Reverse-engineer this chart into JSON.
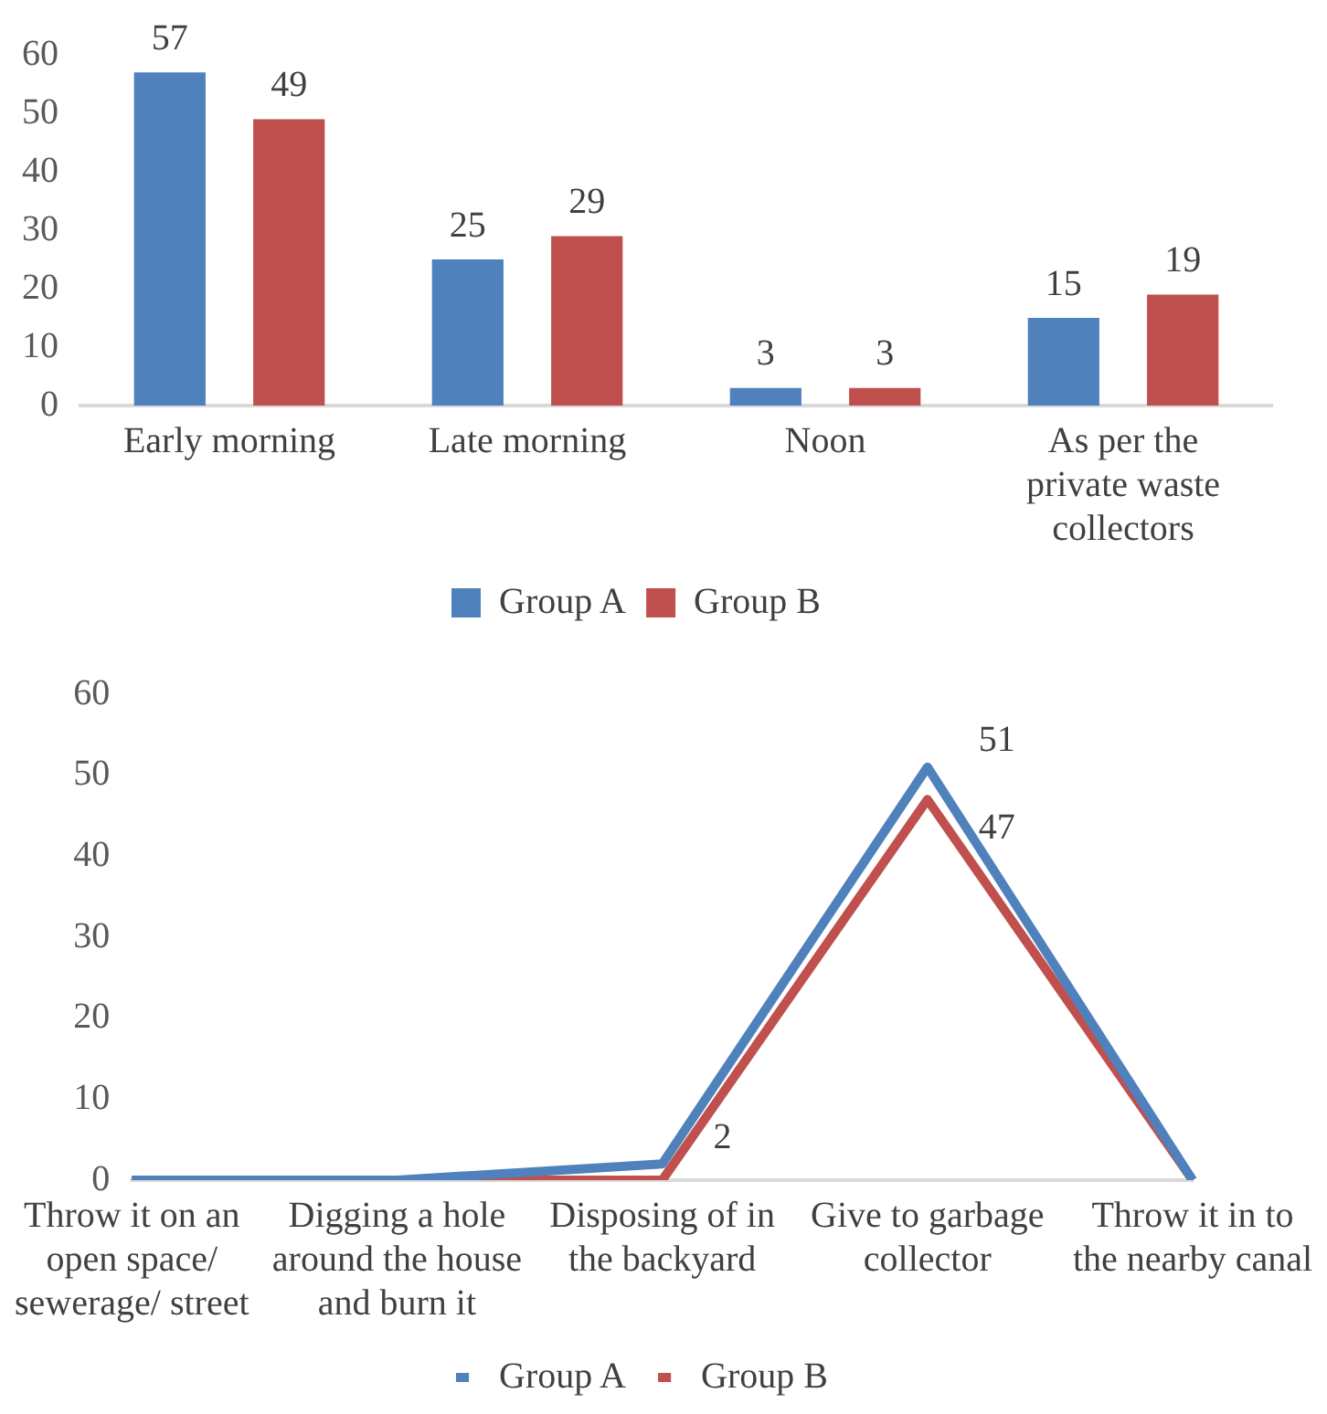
{
  "chart_data": [
    {
      "type": "bar",
      "categories": [
        "Early morning",
        "Late morning",
        "Noon",
        "As per the private waste collectors"
      ],
      "series": [
        {
          "name": "Group A",
          "color": "#4f81bd",
          "values": [
            57,
            25,
            3,
            15
          ]
        },
        {
          "name": "Group B",
          "color": "#c0504d",
          "values": [
            49,
            29,
            3,
            19
          ]
        }
      ],
      "ylim": [
        0,
        60
      ],
      "yticks": [
        0,
        10,
        20,
        30,
        40,
        50,
        60
      ],
      "grid": false,
      "legend": "bottom",
      "data_labels": true
    },
    {
      "type": "line",
      "categories": [
        "Throw it on an open space/ sewerage/ street",
        "Digging a hole around the house and burn it",
        "Disposing of in the backyard",
        "Give to garbage collector",
        "Throw it in to the nearby canal"
      ],
      "series": [
        {
          "name": "Group A",
          "color": "#4f81bd",
          "values": [
            0,
            0,
            2,
            51,
            0
          ],
          "value_labels": [
            null,
            null,
            "2",
            "51",
            null
          ]
        },
        {
          "name": "Group B",
          "color": "#c0504d",
          "values": [
            0,
            0,
            0,
            47,
            0
          ],
          "value_labels": [
            null,
            null,
            null,
            "47",
            null
          ]
        }
      ],
      "ylim": [
        0,
        60
      ],
      "yticks": [
        0,
        10,
        20,
        30,
        40,
        50,
        60
      ],
      "grid": false,
      "legend": "bottom",
      "marker": "none"
    }
  ]
}
